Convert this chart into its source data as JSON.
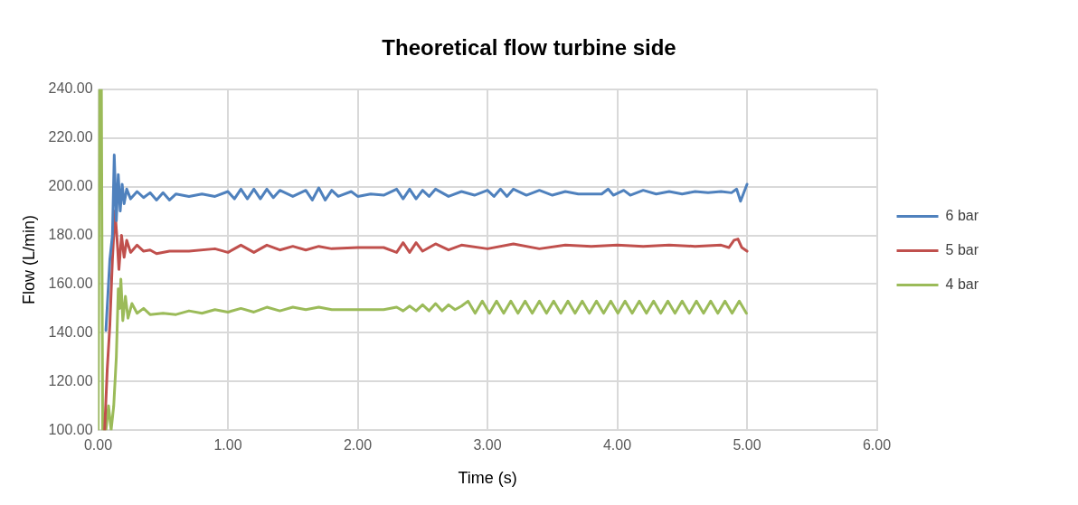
{
  "chart_data": {
    "type": "line",
    "title": "Theoretical flow turbine side",
    "xlabel": "Time (s)",
    "ylabel": "Flow (L/min)",
    "xlim": [
      0,
      6
    ],
    "xticks": [
      {
        "value": 0,
        "label": "0.00"
      },
      {
        "value": 1,
        "label": "1.00"
      },
      {
        "value": 2,
        "label": "2.00"
      },
      {
        "value": 3,
        "label": "3.00"
      },
      {
        "value": 4,
        "label": "4.00"
      },
      {
        "value": 5,
        "label": "5.00"
      },
      {
        "value": 6,
        "label": "6.00"
      }
    ],
    "ylim": [
      100,
      240
    ],
    "yticks": [
      {
        "value": 100,
        "label": "100.00"
      },
      {
        "value": 120,
        "label": "120.00"
      },
      {
        "value": 140,
        "label": "140.00"
      },
      {
        "value": 160,
        "label": "160.00"
      },
      {
        "value": 180,
        "label": "180.00"
      },
      {
        "value": 200,
        "label": "200.00"
      },
      {
        "value": 220,
        "label": "220.00"
      },
      {
        "value": 240,
        "label": "240.00"
      }
    ],
    "grid": true,
    "legend": "right",
    "marker": "none",
    "line_style": "solid",
    "series": [
      {
        "name": "6 bar",
        "color": "#4f81bd",
        "x": [
          0.06,
          0.09,
          0.11,
          0.124,
          0.14,
          0.155,
          0.17,
          0.185,
          0.2,
          0.22,
          0.25,
          0.3,
          0.35,
          0.4,
          0.45,
          0.5,
          0.55,
          0.6,
          0.7,
          0.8,
          0.9,
          1.0,
          1.05,
          1.1,
          1.15,
          1.2,
          1.25,
          1.3,
          1.35,
          1.4,
          1.5,
          1.6,
          1.65,
          1.7,
          1.75,
          1.8,
          1.85,
          1.95,
          2.0,
          2.1,
          2.2,
          2.3,
          2.35,
          2.4,
          2.45,
          2.5,
          2.55,
          2.6,
          2.7,
          2.8,
          2.9,
          3.0,
          3.05,
          3.1,
          3.15,
          3.2,
          3.3,
          3.4,
          3.5,
          3.6,
          3.7,
          3.8,
          3.88,
          3.93,
          3.97,
          4.05,
          4.1,
          4.2,
          4.3,
          4.4,
          4.5,
          4.6,
          4.7,
          4.8,
          4.88,
          4.92,
          4.95,
          5.0
        ],
        "values": [
          141,
          170,
          180,
          213,
          186,
          205,
          190,
          201,
          193,
          199,
          195,
          198,
          195.5,
          197.5,
          194.5,
          197.5,
          194.5,
          197,
          196,
          197,
          196,
          198,
          195,
          199,
          195,
          199,
          195,
          199,
          195.5,
          198.5,
          196,
          198.5,
          194.5,
          199.5,
          194.5,
          198.5,
          196,
          198,
          196,
          197,
          196.5,
          199,
          195,
          199,
          195,
          198.5,
          196,
          199,
          196,
          198,
          196.5,
          198.5,
          196,
          199,
          196,
          199,
          196.5,
          198.5,
          196.5,
          198,
          197,
          197,
          197,
          199,
          196.5,
          198.5,
          196.5,
          198.5,
          197,
          198,
          197,
          198,
          197.5,
          198,
          197.5,
          199,
          194,
          201
        ]
      },
      {
        "name": "5 bar",
        "color": "#c0504d",
        "x": [
          0.05,
          0.07,
          0.09,
          0.11,
          0.13,
          0.15,
          0.16,
          0.18,
          0.2,
          0.22,
          0.25,
          0.3,
          0.35,
          0.4,
          0.45,
          0.55,
          0.7,
          0.9,
          1.0,
          1.1,
          1.2,
          1.3,
          1.4,
          1.5,
          1.6,
          1.7,
          1.8,
          2.0,
          2.2,
          2.3,
          2.35,
          2.4,
          2.45,
          2.5,
          2.6,
          2.7,
          2.8,
          3.0,
          3.2,
          3.4,
          3.6,
          3.8,
          4.0,
          4.2,
          4.4,
          4.6,
          4.8,
          4.86,
          4.9,
          4.93,
          4.96,
          5.0
        ],
        "values": [
          100,
          125,
          143,
          170,
          190,
          175,
          166,
          180,
          171,
          178,
          173,
          176,
          173.5,
          174,
          172.5,
          173.5,
          173.5,
          174.5,
          173,
          176,
          173,
          176,
          174,
          175.5,
          174,
          175.5,
          174.5,
          175,
          175,
          173,
          177,
          173,
          177,
          173.5,
          176.5,
          174,
          176,
          174.5,
          176.5,
          174.5,
          176,
          175.5,
          176,
          175.5,
          176,
          175.5,
          176,
          175,
          178,
          178.5,
          175,
          173.5
        ]
      },
      {
        "name": "4 bar",
        "color": "#9bbb59",
        "x": [
          0.0,
          0.01,
          0.025,
          0.035,
          0.06,
          0.08,
          0.1,
          0.12,
          0.14,
          0.155,
          0.165,
          0.175,
          0.19,
          0.21,
          0.23,
          0.26,
          0.3,
          0.35,
          0.4,
          0.5,
          0.6,
          0.7,
          0.8,
          0.9,
          1.0,
          1.1,
          1.2,
          1.3,
          1.4,
          1.5,
          1.6,
          1.7,
          1.8,
          2.0,
          2.2,
          2.3,
          2.35,
          2.4,
          2.45,
          2.5,
          2.55,
          2.6,
          2.65,
          2.7,
          2.75,
          2.8,
          2.85,
          2.905,
          2.96,
          3.015,
          3.07,
          3.125,
          3.18,
          3.235,
          3.29,
          3.345,
          3.4,
          3.455,
          3.51,
          3.565,
          3.62,
          3.675,
          3.73,
          3.785,
          3.84,
          3.895,
          3.95,
          4.005,
          4.06,
          4.115,
          4.17,
          4.225,
          4.28,
          4.335,
          4.39,
          4.445,
          4.5,
          4.555,
          4.61,
          4.665,
          4.72,
          4.775,
          4.83,
          4.885,
          4.94,
          4.995
        ],
        "values": [
          100,
          240,
          240,
          100,
          100,
          110,
          100,
          110,
          130,
          158,
          150,
          162,
          145,
          155,
          146,
          152,
          148,
          150,
          147.5,
          148,
          147.5,
          149,
          148,
          149.5,
          148.5,
          150,
          148.5,
          150.5,
          149,
          150.5,
          149.5,
          150.5,
          149.5,
          149.5,
          149.5,
          150.5,
          149,
          151,
          149,
          151.5,
          149,
          152,
          149,
          151.5,
          149.5,
          151,
          153,
          148,
          153,
          148,
          153,
          148,
          153,
          148,
          153,
          148,
          153,
          148,
          153,
          148,
          153,
          148,
          153,
          148,
          153,
          148,
          153,
          148,
          153,
          148,
          153,
          148,
          153,
          148,
          153,
          148,
          153,
          148,
          153,
          148,
          153,
          148,
          153,
          148,
          153,
          148
        ]
      }
    ]
  }
}
